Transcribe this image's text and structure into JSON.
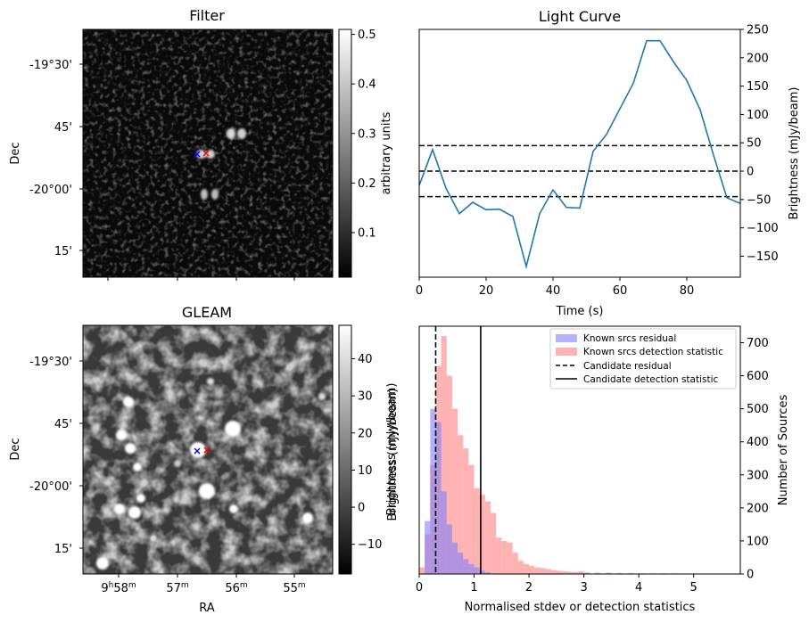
{
  "panels": {
    "filter": {
      "title": "Filter",
      "ylabel": "Dec",
      "dec_ticks": [
        "-19°30'",
        "45'",
        "-20°00'",
        "15'"
      ],
      "colorbar": {
        "label": "arbitrary units",
        "range": [
          0.01,
          0.51
        ],
        "ticks": [
          "0.1",
          "0.2",
          "0.3",
          "0.4",
          "0.5"
        ],
        "tick_values": [
          0.1,
          0.2,
          0.3,
          0.4,
          0.5
        ]
      },
      "markers": [
        {
          "marker": "x",
          "color": "#0000ff"
        },
        {
          "marker": "x",
          "color": "#ff0000"
        }
      ]
    },
    "gleam": {
      "title": "GLEAM",
      "ylabel": "Dec",
      "xlabel": "RA",
      "dec_ticks": [
        "-19°30'",
        "45'",
        "-20°00'",
        "15'"
      ],
      "ra_ticks": [
        {
          "h": "9",
          "hs": "h",
          "m": "58",
          "ms": "m"
        },
        {
          "h": "",
          "hs": "",
          "m": "57",
          "ms": "m"
        },
        {
          "h": "",
          "hs": "",
          "m": "56",
          "ms": "m"
        },
        {
          "h": "",
          "hs": "",
          "m": "55",
          "ms": "m"
        }
      ],
      "colorbar": {
        "label": "Brightness (mJy/beam)",
        "range": [
          -18,
          49
        ],
        "ticks": [
          "−10",
          "0",
          "10",
          "20",
          "30",
          "40"
        ],
        "tick_values": [
          -10,
          0,
          10,
          20,
          30,
          40
        ]
      },
      "markers": [
        {
          "marker": "x",
          "color": "#0000ff"
        },
        {
          "marker": "x",
          "color": "#ff0000"
        }
      ]
    }
  },
  "chart_data": [
    {
      "type": "line",
      "title": "Light Curve",
      "xlabel": "Time (s)",
      "ylabel": "Brightness (mJy/beam)",
      "xlim": [
        0,
        96
      ],
      "ylim": [
        -187,
        250
      ],
      "xticks": [
        0,
        20,
        40,
        60,
        80
      ],
      "yticks": [
        -150,
        -100,
        -50,
        0,
        50,
        100,
        150,
        200,
        250
      ],
      "ytick_labels": [
        "−150",
        "−100",
        "−50",
        "0",
        "50",
        "100",
        "150",
        "200",
        "250"
      ],
      "yaxis_side": "right",
      "series": [
        {
          "color": "#1f77b4",
          "x": [
            0,
            4,
            8,
            12,
            16,
            20,
            24,
            28,
            32,
            36,
            40,
            44,
            48,
            52,
            56,
            60,
            64,
            68,
            72,
            76,
            80,
            84,
            88,
            92,
            96
          ],
          "values": [
            -25,
            38,
            -30,
            -75,
            -55,
            -68,
            -67,
            -80,
            -168,
            -75,
            -33,
            -64,
            -65,
            35,
            65,
            110,
            155,
            230,
            230,
            193,
            160,
            108,
            28,
            -47,
            -57
          ]
        }
      ],
      "hlines": [
        {
          "y": 45,
          "style": "dashed",
          "color": "#000000"
        },
        {
          "y": 0,
          "style": "dashed",
          "color": "#000000"
        },
        {
          "y": -45,
          "style": "dashed",
          "color": "#000000"
        }
      ]
    },
    {
      "type": "histogram",
      "xlabel": "Normalised stdev or detection statistics",
      "ylabel_left": "Brightness (mJy/beam)",
      "ylabel_right": "Number of Sources",
      "xlim": [
        0,
        5.85
      ],
      "ylim": [
        0,
        750
      ],
      "xticks": [
        0,
        1,
        2,
        3,
        4,
        5
      ],
      "yticks": [
        0,
        100,
        200,
        300,
        400,
        500,
        600,
        700
      ],
      "bin_width": 0.1,
      "series": [
        {
          "name": "Known srcs residual",
          "color": "#7f7fff",
          "bin_starts": [
            0.1,
            0.2,
            0.3,
            0.4,
            0.5,
            0.6,
            0.7,
            0.8,
            0.9,
            1.0,
            1.1,
            1.2
          ],
          "values": [
            160,
            500,
            460,
            250,
            150,
            95,
            65,
            45,
            30,
            20,
            10,
            5
          ]
        },
        {
          "name": "Known srcs detection statistic",
          "color": "#ff7f7f",
          "bin_starts": [
            0.0,
            0.1,
            0.2,
            0.3,
            0.4,
            0.5,
            0.6,
            0.7,
            0.8,
            0.9,
            1.0,
            1.1,
            1.2,
            1.3,
            1.4,
            1.5,
            1.6,
            1.7,
            1.8,
            1.9,
            2.0,
            2.1,
            2.2,
            2.3,
            2.4,
            2.5,
            2.6,
            2.7,
            2.8,
            2.9,
            3.0,
            3.2,
            3.4,
            3.6,
            3.8,
            4.0,
            4.2,
            4.4,
            4.6,
            4.8,
            5.0,
            5.2,
            5.4
          ],
          "values": [
            20,
            120,
            330,
            630,
            720,
            600,
            500,
            420,
            380,
            330,
            260,
            240,
            220,
            185,
            110,
            100,
            95,
            65,
            40,
            30,
            25,
            20,
            18,
            15,
            12,
            10,
            8,
            7,
            6,
            8,
            5,
            4,
            4,
            3,
            3,
            2,
            2,
            2,
            2,
            1,
            1,
            1,
            1
          ]
        }
      ],
      "vlines": [
        {
          "name": "Candidate residual",
          "x": 0.3,
          "style": "dashed",
          "color": "#000000"
        },
        {
          "name": "Candidate detection statistic",
          "x": 1.12,
          "style": "solid",
          "color": "#000000"
        }
      ],
      "legend": "top-right"
    }
  ]
}
